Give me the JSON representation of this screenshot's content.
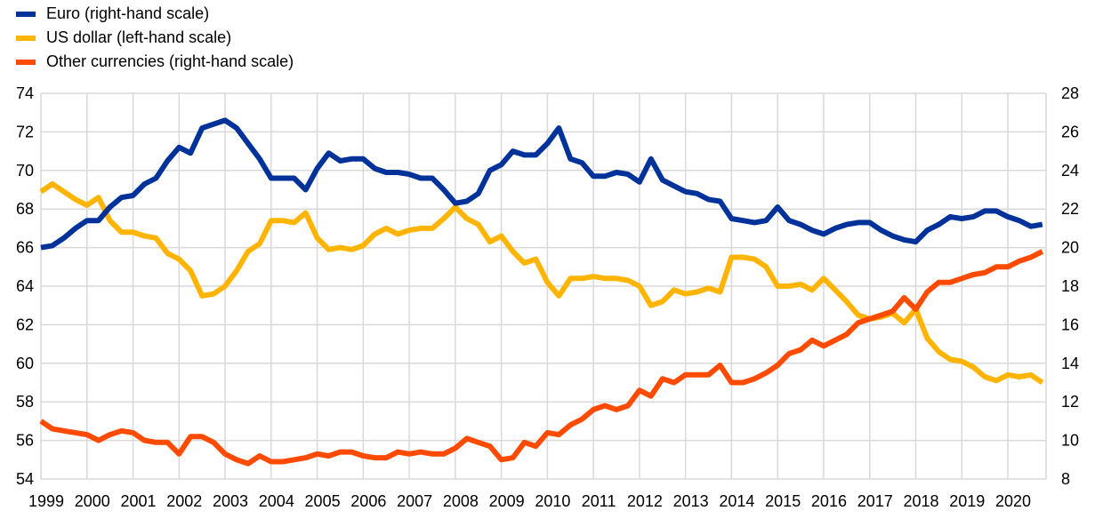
{
  "chart_data": {
    "type": "line",
    "title": "",
    "xlabel": "",
    "ylabel_left": "",
    "ylabel_right": "",
    "legend_position": "top-left",
    "grid": true,
    "left_axis": {
      "range": [
        54,
        74
      ],
      "ticks": [
        "54",
        "56",
        "58",
        "60",
        "62",
        "64",
        "66",
        "68",
        "70",
        "72",
        "74"
      ]
    },
    "right_axis": {
      "range": [
        8,
        28
      ],
      "ticks": [
        "8",
        "10",
        "12",
        "14",
        "16",
        "18",
        "20",
        "22",
        "24",
        "26",
        "28"
      ]
    },
    "x_ticks": [
      "1999",
      "2000",
      "2001",
      "2002",
      "2003",
      "2004",
      "2005",
      "2006",
      "2007",
      "2008",
      "2009",
      "2010",
      "2011",
      "2012",
      "2013",
      "2014",
      "2015",
      "2016",
      "2017",
      "2018",
      "2019",
      "2020"
    ],
    "x": [
      "1999Q1",
      "1999Q2",
      "1999Q3",
      "1999Q4",
      "2000Q1",
      "2000Q2",
      "2000Q3",
      "2000Q4",
      "2001Q1",
      "2001Q2",
      "2001Q3",
      "2001Q4",
      "2002Q1",
      "2002Q2",
      "2002Q3",
      "2002Q4",
      "2003Q1",
      "2003Q2",
      "2003Q3",
      "2003Q4",
      "2004Q1",
      "2004Q2",
      "2004Q3",
      "2004Q4",
      "2005Q1",
      "2005Q2",
      "2005Q3",
      "2005Q4",
      "2006Q1",
      "2006Q2",
      "2006Q3",
      "2006Q4",
      "2007Q1",
      "2007Q2",
      "2007Q3",
      "2007Q4",
      "2008Q1",
      "2008Q2",
      "2008Q3",
      "2008Q4",
      "2009Q1",
      "2009Q2",
      "2009Q3",
      "2009Q4",
      "2010Q1",
      "2010Q2",
      "2010Q3",
      "2010Q4",
      "2011Q1",
      "2011Q2",
      "2011Q3",
      "2011Q4",
      "2012Q1",
      "2012Q2",
      "2012Q3",
      "2012Q4",
      "2013Q1",
      "2013Q2",
      "2013Q3",
      "2013Q4",
      "2014Q1",
      "2014Q2",
      "2014Q3",
      "2014Q4",
      "2015Q1",
      "2015Q2",
      "2015Q3",
      "2015Q4",
      "2016Q1",
      "2016Q2",
      "2016Q3",
      "2016Q4",
      "2017Q1",
      "2017Q2",
      "2017Q3",
      "2017Q4",
      "2018Q1",
      "2018Q2",
      "2018Q3",
      "2018Q4",
      "2019Q1",
      "2019Q2",
      "2019Q3",
      "2019Q4",
      "2020Q1",
      "2020Q2",
      "2020Q3",
      "2020Q4"
    ],
    "series": [
      {
        "name": "Euro (right-hand scale)",
        "axis": "right",
        "color": "#003299",
        "values": [
          20.0,
          20.1,
          20.5,
          21.0,
          21.4,
          21.4,
          22.1,
          22.6,
          22.7,
          23.3,
          23.6,
          24.5,
          25.2,
          24.9,
          26.2,
          26.4,
          26.6,
          26.2,
          25.4,
          24.6,
          23.6,
          23.6,
          23.6,
          23.0,
          24.1,
          24.9,
          24.5,
          24.6,
          24.6,
          24.1,
          23.9,
          23.9,
          23.8,
          23.6,
          23.6,
          23.0,
          22.3,
          22.4,
          22.8,
          24.0,
          24.3,
          25.0,
          24.8,
          24.8,
          25.4,
          26.2,
          24.6,
          24.4,
          23.7,
          23.7,
          23.9,
          23.8,
          23.4,
          24.6,
          23.5,
          23.2,
          22.9,
          22.8,
          22.5,
          22.4,
          21.5,
          21.4,
          21.3,
          21.4,
          22.1,
          21.4,
          21.2,
          20.9,
          20.7,
          21.0,
          21.2,
          21.3,
          21.3,
          20.9,
          20.6,
          20.4,
          20.3,
          20.9,
          21.2,
          21.6,
          21.5,
          21.6,
          21.9,
          21.9,
          21.6,
          21.4,
          21.1,
          21.2
        ]
      },
      {
        "name": "US dollar (left-hand scale)",
        "axis": "left",
        "color": "#FFB400",
        "values": [
          68.9,
          69.3,
          68.9,
          68.5,
          68.2,
          68.6,
          67.4,
          66.8,
          66.8,
          66.6,
          66.5,
          65.7,
          65.4,
          64.8,
          63.5,
          63.6,
          64.0,
          64.8,
          65.8,
          66.2,
          67.4,
          67.4,
          67.3,
          67.8,
          66.5,
          65.9,
          66.0,
          65.9,
          66.1,
          66.7,
          67.0,
          66.7,
          66.9,
          67.0,
          67.0,
          67.5,
          68.1,
          67.5,
          67.2,
          66.3,
          66.6,
          65.8,
          65.2,
          65.4,
          64.2,
          63.5,
          64.4,
          64.4,
          64.5,
          64.4,
          64.4,
          64.3,
          64.0,
          63.0,
          63.2,
          63.8,
          63.6,
          63.7,
          63.9,
          63.7,
          65.5,
          65.5,
          65.4,
          65.0,
          64.0,
          64.0,
          64.1,
          63.8,
          64.4,
          63.8,
          63.2,
          62.5,
          62.3,
          62.4,
          62.6,
          62.1,
          62.8,
          61.3,
          60.6,
          60.2,
          60.1,
          59.8,
          59.3,
          59.1,
          59.4,
          59.3,
          59.4,
          59.0
        ]
      },
      {
        "name": "Other currencies (right-hand scale)",
        "axis": "right",
        "color": "#FF4B00",
        "values": [
          11.0,
          10.6,
          10.5,
          10.4,
          10.3,
          10.0,
          10.3,
          10.5,
          10.4,
          10.0,
          9.9,
          9.9,
          9.3,
          10.2,
          10.2,
          9.9,
          9.3,
          9.0,
          8.8,
          9.2,
          8.9,
          8.9,
          9.0,
          9.1,
          9.3,
          9.2,
          9.4,
          9.4,
          9.2,
          9.1,
          9.1,
          9.4,
          9.3,
          9.4,
          9.3,
          9.3,
          9.6,
          10.1,
          9.9,
          9.7,
          9.0,
          9.1,
          9.9,
          9.7,
          10.4,
          10.3,
          10.8,
          11.1,
          11.6,
          11.8,
          11.6,
          11.8,
          12.6,
          12.3,
          13.2,
          13.0,
          13.4,
          13.4,
          13.4,
          13.9,
          13.0,
          13.0,
          13.2,
          13.5,
          13.9,
          14.5,
          14.7,
          15.2,
          14.9,
          15.2,
          15.5,
          16.1,
          16.3,
          16.5,
          16.7,
          17.4,
          16.8,
          17.7,
          18.2,
          18.2,
          18.4,
          18.6,
          18.7,
          19.0,
          19.0,
          19.3,
          19.5,
          19.8
        ]
      }
    ]
  }
}
